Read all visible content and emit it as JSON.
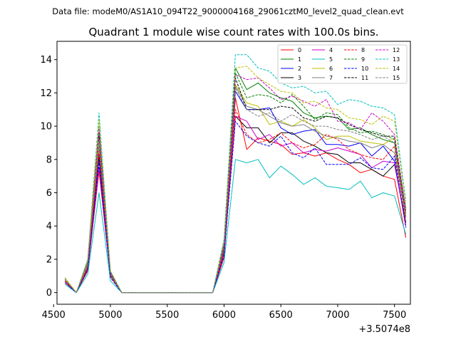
{
  "header": {
    "subtitle": "Data file: modeM0/AS1A10_094T22_9000004168_29061cztM0_level2_quad_clean.evt",
    "title": "Quadrant 1 module wise count rates with 100.0s bins."
  },
  "chart_data": {
    "type": "line",
    "title": "Quadrant 1 module wise count rates with 100.0s bins.",
    "xlabel": "",
    "ylabel": "",
    "x_offset_label": "+3.5074e8",
    "xlim": [
      4530,
      7640
    ],
    "ylim": [
      -0.7,
      15.1
    ],
    "xticks": [
      4500,
      5000,
      5500,
      6000,
      6500,
      7000,
      7500
    ],
    "xtick_labels": [
      "4500",
      "5000",
      "5500",
      "6000",
      "6500",
      "7000",
      "7500"
    ],
    "yticks": [
      0,
      2,
      4,
      6,
      8,
      10,
      12,
      14
    ],
    "ytick_labels": [
      "0",
      "2",
      "4",
      "6",
      "8",
      "10",
      "12",
      "14"
    ],
    "grid": false,
    "legend_placement": "top-right",
    "x": [
      4600,
      4700,
      4800,
      4900,
      5000,
      5100,
      5200,
      5300,
      5400,
      5500,
      5600,
      5700,
      5800,
      5900,
      6000,
      6100,
      6200,
      6300,
      6400,
      6500,
      6600,
      6700,
      6800,
      6900,
      7000,
      7100,
      7200,
      7300,
      7400,
      7500,
      7600
    ],
    "series": [
      {
        "name": "0",
        "color": "#ff0000",
        "dash": "solid",
        "values": [
          0.6,
          0.0,
          1.3,
          7.3,
          1.0,
          0.0,
          0.0,
          0.0,
          0.0,
          0.0,
          0.0,
          0.0,
          0.0,
          0.0,
          2.1,
          11.7,
          8.6,
          9.3,
          9.1,
          8.9,
          8.3,
          8.4,
          8.2,
          8.4,
          8.0,
          7.7,
          7.2,
          7.4,
          7.0,
          6.8,
          3.3
        ]
      },
      {
        "name": "1",
        "color": "#008000",
        "dash": "solid",
        "values": [
          0.8,
          0.0,
          1.8,
          9.6,
          1.2,
          0.0,
          0.0,
          0.0,
          0.0,
          0.0,
          0.0,
          0.0,
          0.0,
          0.0,
          2.9,
          13.5,
          12.2,
          12.6,
          12.0,
          11.7,
          11.5,
          10.8,
          10.5,
          10.6,
          10.5,
          9.8,
          9.9,
          9.5,
          9.2,
          9.0,
          4.6
        ]
      },
      {
        "name": "2",
        "color": "#0000ff",
        "dash": "solid",
        "values": [
          0.7,
          0.0,
          1.5,
          8.1,
          1.0,
          0.0,
          0.0,
          0.0,
          0.0,
          0.0,
          0.0,
          0.0,
          0.0,
          0.0,
          2.5,
          12.1,
          11.0,
          11.0,
          11.1,
          9.9,
          9.5,
          9.7,
          9.8,
          8.9,
          8.9,
          8.8,
          9.0,
          8.2,
          8.8,
          7.9,
          4.0
        ]
      },
      {
        "name": "3",
        "color": "#000000",
        "dash": "solid",
        "values": [
          0.7,
          0.0,
          1.5,
          8.3,
          1.0,
          0.0,
          0.0,
          0.0,
          0.0,
          0.0,
          0.0,
          0.0,
          0.0,
          0.0,
          2.4,
          10.6,
          9.9,
          9.9,
          9.0,
          9.6,
          9.6,
          9.1,
          8.8,
          8.4,
          8.3,
          7.8,
          7.8,
          7.4,
          7.0,
          7.7,
          4.2
        ]
      },
      {
        "name": "4",
        "color": "#cc00cc",
        "dash": "solid",
        "values": [
          0.7,
          0.0,
          1.4,
          7.5,
          1.0,
          0.0,
          0.0,
          0.0,
          0.0,
          0.0,
          0.0,
          0.0,
          0.0,
          0.0,
          2.3,
          10.6,
          10.3,
          9.2,
          9.5,
          8.8,
          9.0,
          8.4,
          8.6,
          8.5,
          8.7,
          8.5,
          8.3,
          7.5,
          7.9,
          7.8,
          4.0
        ]
      },
      {
        "name": "5",
        "color": "#00bfbf",
        "dash": "solid",
        "values": [
          0.5,
          0.0,
          1.1,
          6.0,
          0.7,
          0.0,
          0.0,
          0.0,
          0.0,
          0.0,
          0.0,
          0.0,
          0.0,
          0.0,
          1.8,
          8.0,
          7.8,
          8.0,
          6.9,
          7.6,
          7.1,
          6.5,
          6.9,
          6.4,
          6.3,
          6.2,
          6.7,
          5.7,
          6.0,
          5.8,
          3.5
        ]
      },
      {
        "name": "6",
        "color": "#bfbf00",
        "dash": "solid",
        "values": [
          0.8,
          0.0,
          1.7,
          9.3,
          1.1,
          0.0,
          0.0,
          0.0,
          0.0,
          0.0,
          0.0,
          0.0,
          0.0,
          0.0,
          2.7,
          12.5,
          11.4,
          11.2,
          10.1,
          10.3,
          10.0,
          10.4,
          9.9,
          9.2,
          9.4,
          9.4,
          9.1,
          9.0,
          8.9,
          9.3,
          4.8
        ]
      },
      {
        "name": "7",
        "color": "#808080",
        "dash": "solid",
        "values": [
          0.7,
          0.0,
          1.6,
          8.8,
          1.0,
          0.0,
          0.0,
          0.0,
          0.0,
          0.0,
          0.0,
          0.0,
          0.0,
          0.0,
          2.6,
          12.4,
          11.2,
          11.0,
          10.6,
          10.2,
          10.0,
          10.1,
          9.7,
          9.4,
          9.3,
          9.1,
          9.0,
          8.7,
          8.9,
          8.4,
          4.5
        ]
      },
      {
        "name": "8",
        "color": "#ff0000",
        "dash": "dashed",
        "values": [
          0.7,
          0.0,
          1.5,
          8.5,
          1.0,
          0.0,
          0.0,
          0.0,
          0.0,
          0.0,
          0.0,
          0.0,
          0.0,
          0.0,
          2.4,
          11.0,
          9.5,
          9.0,
          9.2,
          9.6,
          9.0,
          8.7,
          8.9,
          9.5,
          9.2,
          8.6,
          8.3,
          8.1,
          8.0,
          8.8,
          4.2
        ]
      },
      {
        "name": "9",
        "color": "#008000",
        "dash": "dashed",
        "values": [
          0.8,
          0.0,
          1.9,
          10.0,
          1.2,
          0.0,
          0.0,
          0.0,
          0.0,
          0.0,
          0.0,
          0.0,
          0.0,
          0.0,
          3.0,
          13.2,
          11.7,
          11.9,
          11.8,
          11.4,
          11.9,
          11.2,
          10.4,
          10.8,
          10.7,
          9.9,
          9.6,
          9.7,
          9.5,
          9.2,
          5.0
        ]
      },
      {
        "name": "10",
        "color": "#0000ff",
        "dash": "dashed",
        "values": [
          0.6,
          0.0,
          1.4,
          7.8,
          0.9,
          0.0,
          0.0,
          0.0,
          0.0,
          0.0,
          0.0,
          0.0,
          0.0,
          0.0,
          2.2,
          10.3,
          9.4,
          9.0,
          8.8,
          9.4,
          8.4,
          8.1,
          8.7,
          7.7,
          7.7,
          7.7,
          8.1,
          7.5,
          7.4,
          8.2,
          3.9
        ]
      },
      {
        "name": "11",
        "color": "#000000",
        "dash": "dashed",
        "values": [
          0.8,
          0.0,
          1.7,
          9.4,
          1.1,
          0.0,
          0.0,
          0.0,
          0.0,
          0.0,
          0.0,
          0.0,
          0.0,
          0.0,
          2.7,
          12.9,
          11.0,
          11.0,
          11.0,
          11.2,
          11.1,
          10.5,
          10.3,
          10.6,
          10.5,
          10.1,
          9.8,
          9.6,
          9.4,
          9.4,
          4.8
        ]
      },
      {
        "name": "12",
        "color": "#cc00cc",
        "dash": "dashed",
        "values": [
          0.8,
          0.0,
          1.8,
          9.8,
          1.2,
          0.0,
          0.0,
          0.0,
          0.0,
          0.0,
          0.0,
          0.0,
          0.0,
          0.0,
          2.9,
          13.1,
          12.8,
          12.9,
          12.3,
          11.6,
          11.8,
          11.5,
          11.2,
          11.6,
          10.3,
          10.2,
          9.8,
          10.8,
          10.3,
          9.5,
          5.0
        ]
      },
      {
        "name": "13",
        "color": "#00bfbf",
        "dash": "dashed",
        "values": [
          0.9,
          0.0,
          2.0,
          10.8,
          1.3,
          0.0,
          0.0,
          0.0,
          0.0,
          0.0,
          0.0,
          0.0,
          0.0,
          0.0,
          3.2,
          14.3,
          14.3,
          13.5,
          13.3,
          12.6,
          12.3,
          12.4,
          12.0,
          12.1,
          11.3,
          11.6,
          11.5,
          11.2,
          11.1,
          10.7,
          5.5
        ]
      },
      {
        "name": "14",
        "color": "#bfbf00",
        "dash": "dashed",
        "values": [
          0.9,
          0.0,
          1.9,
          10.4,
          1.3,
          0.0,
          0.0,
          0.0,
          0.0,
          0.0,
          0.0,
          0.0,
          0.0,
          0.0,
          3.1,
          13.5,
          13.6,
          12.9,
          12.5,
          12.1,
          12.0,
          11.4,
          11.5,
          11.1,
          11.0,
          10.5,
          10.4,
          10.1,
          10.6,
          10.3,
          5.3
        ]
      },
      {
        "name": "15",
        "color": "#808080",
        "dash": "dashed",
        "values": [
          0.8,
          0.0,
          1.7,
          9.2,
          1.1,
          0.0,
          0.0,
          0.0,
          0.0,
          0.0,
          0.0,
          0.0,
          0.0,
          0.0,
          2.7,
          12.3,
          11.0,
          10.6,
          10.8,
          10.3,
          10.7,
          10.3,
          10.0,
          10.0,
          9.8,
          9.7,
          9.5,
          9.2,
          9.4,
          9.0,
          4.7
        ]
      }
    ]
  }
}
